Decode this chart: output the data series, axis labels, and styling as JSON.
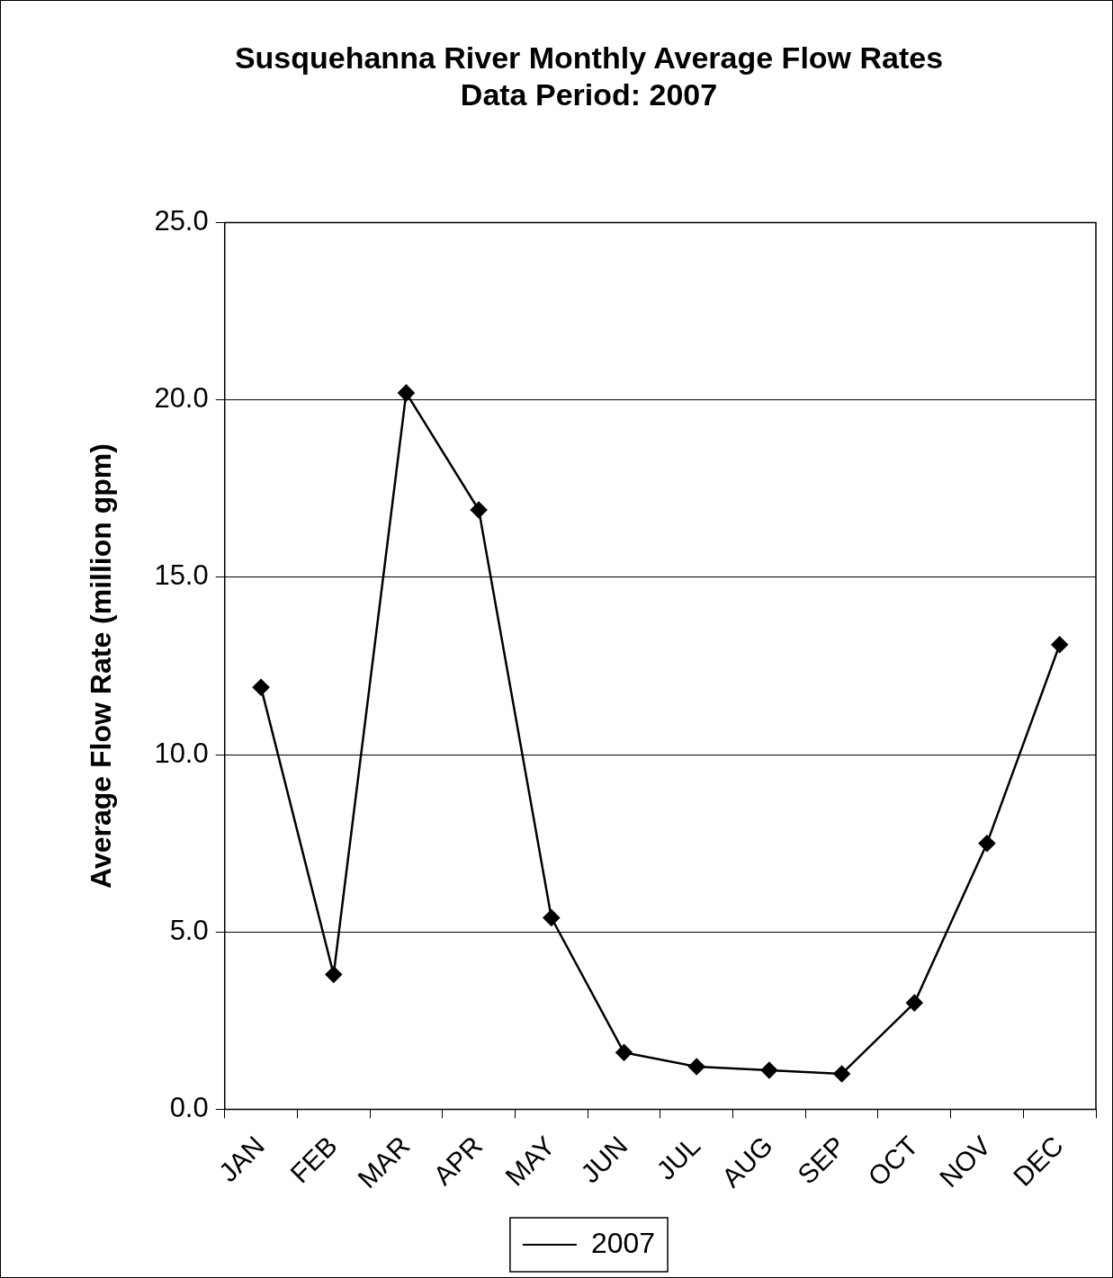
{
  "chart_data": {
    "type": "line",
    "title": [
      "Susquehanna River Monthly Average Flow Rates",
      "Data Period: 2007"
    ],
    "ylabel": "Average Flow Rate (million gpm)",
    "categories": [
      "JAN",
      "FEB",
      "MAR",
      "APR",
      "MAY",
      "JUN",
      "JUL",
      "AUG",
      "SEP",
      "OCT",
      "NOV",
      "DEC"
    ],
    "series": [
      {
        "name": "2007",
        "color": "#000000",
        "values": [
          11.9,
          3.8,
          20.2,
          16.9,
          5.4,
          1.6,
          1.2,
          1.1,
          1.0,
          3.0,
          7.5,
          13.1
        ]
      }
    ],
    "ylim": [
      0,
      25
    ],
    "yticks": [
      {
        "value": 0,
        "label": "0.0"
      },
      {
        "value": 5,
        "label": "5.0"
      },
      {
        "value": 10,
        "label": "10.0"
      },
      {
        "value": 15,
        "label": "15.0"
      },
      {
        "value": 20,
        "label": "20.0"
      },
      {
        "value": 25,
        "label": "25.0"
      }
    ],
    "grid": "y",
    "legend": "bottom",
    "marker": "diamond",
    "line_style": "solid"
  }
}
